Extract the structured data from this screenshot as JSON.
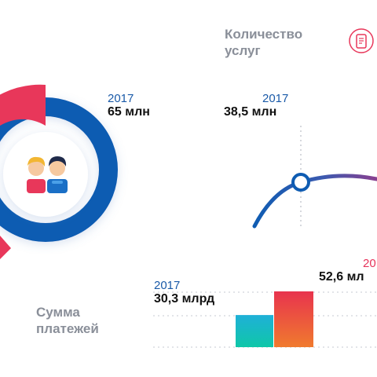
{
  "colors": {
    "blue": "#0f5cb2",
    "red": "#e8375a",
    "year_blue": "#1a5aa8",
    "year_red": "#e6335a",
    "purple": "#6a4aa0",
    "gray": "#8a8f99"
  },
  "icons": [
    "people-icon",
    "phone-receipt-icon"
  ],
  "chart_data": [
    {
      "type": "pie",
      "series": [
        {
          "value": 65,
          "year_label": "2017",
          "value_label": "65 млн"
        }
      ]
    },
    {
      "type": "line",
      "title": "Количество услуг",
      "points": [
        {
          "x": "2017",
          "value": 38.5,
          "year_label": "2017",
          "value_label": "38,5 млн"
        }
      ]
    },
    {
      "type": "bar",
      "title": "Сумма платежей",
      "bars": [
        {
          "year_label": "2017",
          "value": 30.3,
          "value_label": "30,3 млрд"
        },
        {
          "year_label": "20",
          "value": 52.6,
          "value_label": "52,6 мл"
        }
      ]
    }
  ]
}
